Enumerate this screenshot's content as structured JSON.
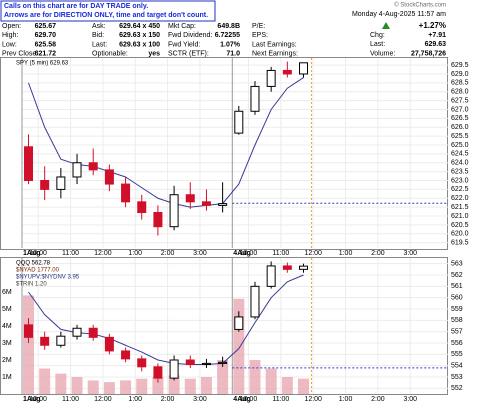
{
  "header": {
    "note": [
      "Calls on this chart are for DAY TRADE only.",
      "Arrows are for DIRECTION ONLY, time and target don't count."
    ],
    "rows": [
      [
        {
          "label": "Open:",
          "value": "625.67"
        },
        {
          "label": "Ask:",
          "value": "629.64 x 450"
        },
        {
          "label": "Mkt Cap:",
          "value": "649.8B"
        },
        {
          "label": "P/E:"
        }
      ],
      [
        {
          "label": "High:",
          "value": "629.70"
        },
        {
          "label": "Bid:",
          "value": "629.63 x 150"
        },
        {
          "label": "Fwd Dividend:",
          "value": "6.72255"
        },
        {
          "label": "EPS:"
        }
      ],
      [
        {
          "label": "Low:",
          "value": "625.58"
        },
        {
          "label": "Last:",
          "value": "629.63 x 100"
        },
        {
          "label": "Fwd Yield:",
          "value": "1.07%"
        },
        {
          "label": "Last Earnings:"
        }
      ],
      [
        {
          "label": "Prev Close:",
          "value": "621.72"
        },
        {
          "label": "Optionable:",
          "value": "yes"
        },
        {
          "label": "SCTR (ETF):",
          "value": "71.0"
        },
        {
          "label": "Next Earnings:"
        }
      ]
    ],
    "copyright": "© StockCharts.com",
    "date": "Monday  4-Aug-2025 11:57 am",
    "pct": "+1.27%",
    "right_rows": [
      {
        "label": "Chg:",
        "value": "+7.91"
      },
      {
        "label": "Last:",
        "value": "629.63"
      },
      {
        "label": "Volume:",
        "value": "27,758,726"
      }
    ]
  },
  "chart_data": [
    {
      "type": "candlestick",
      "legend": [
        {
          "text": "SPY (5 min) 629.63",
          "color": "#000000"
        }
      ],
      "x": [
        0,
        30,
        60,
        90,
        120,
        150,
        180,
        210,
        240,
        270,
        300,
        330,
        360,
        390,
        420,
        450,
        480,
        510
      ],
      "open": [
        624.9,
        623.0,
        622.5,
        623.2,
        624.0,
        623.6,
        622.8,
        621.8,
        621.2,
        620.4,
        622.2,
        621.8,
        621.6,
        625.67,
        626.9,
        628.3,
        629.2,
        629.0
      ],
      "high": [
        625.6,
        623.8,
        623.7,
        624.5,
        624.8,
        623.9,
        623.2,
        622.2,
        621.6,
        622.7,
        622.9,
        622.5,
        622.9,
        627.2,
        628.6,
        629.4,
        629.7,
        629.6
      ],
      "low": [
        622.8,
        621.9,
        622.0,
        622.8,
        623.3,
        622.4,
        621.5,
        620.8,
        619.9,
        620.2,
        621.4,
        621.3,
        621.2,
        625.58,
        626.7,
        628.0,
        628.8,
        628.8
      ],
      "close": [
        623.0,
        622.5,
        623.2,
        624.0,
        623.6,
        622.8,
        621.8,
        621.2,
        620.4,
        622.2,
        621.8,
        621.6,
        621.7,
        626.9,
        628.3,
        629.2,
        629.0,
        629.63
      ],
      "up_color": "#000000",
      "down_color": "#d0102a",
      "ma": {
        "color": "#3a3a96",
        "values": [
          628.5,
          626.0,
          624.2,
          623.9,
          623.8,
          623.5,
          623.2,
          622.6,
          622.0,
          621.7,
          621.5,
          621.6,
          621.7,
          622.8,
          625.0,
          627.0,
          628.2,
          628.8
        ]
      },
      "ref_line": {
        "value": 621.72,
        "color": "#2a3ad0"
      },
      "now_line": {
        "x": 537,
        "color": "#f0a020"
      },
      "xlim": [
        0,
        790
      ],
      "ylim": [
        619.2,
        629.9
      ],
      "yticks": [
        619.5,
        {
          "value": 620,
          "label": "620.0"
        },
        620.5,
        {
          "value": 621,
          "label": "621.0"
        },
        621.5,
        {
          "value": 622,
          "label": "622.0"
        },
        622.5,
        {
          "value": 623,
          "label": "623.0"
        },
        623.5,
        {
          "value": 624,
          "label": "624.0"
        },
        624.5,
        {
          "value": 625,
          "label": "625.0"
        },
        625.5,
        {
          "value": 626,
          "label": "626.0"
        },
        626.5,
        {
          "value": 627,
          "label": "627.0"
        },
        627.5,
        {
          "value": 628,
          "label": "628.0"
        },
        628.5,
        {
          "value": 629,
          "label": "629.0"
        },
        629.5
      ],
      "xticks": [
        {
          "value": 30,
          "label": "10:00"
        },
        {
          "value": 90,
          "label": "11:00"
        },
        {
          "value": 150,
          "label": "12:00"
        },
        {
          "value": 210,
          "label": "1:00"
        },
        {
          "value": 270,
          "label": "2:00"
        },
        {
          "value": 330,
          "label": "3:00"
        },
        {
          "value": 420,
          "label": "10:00"
        },
        {
          "value": 480,
          "label": "11:00"
        },
        {
          "value": 540,
          "label": "12:00"
        },
        {
          "value": 600,
          "label": "1:00"
        },
        {
          "value": 660,
          "label": "2:00"
        },
        {
          "value": 720,
          "label": "3:00"
        }
      ],
      "day_labels": [
        {
          "value": 0,
          "label": "1Aug"
        },
        {
          "value": 390,
          "label": "4Aug"
        }
      ],
      "grid": true
    },
    {
      "type": "candlestick",
      "legend": [
        {
          "text": "QQQ 562.78",
          "color": "#000000"
        },
        {
          "text": "$NYAD 1777.00",
          "color": "#7a2a00"
        },
        {
          "text": "$NYUPV:$NYDNV 3.95",
          "color": "#203080"
        },
        {
          "text": "$TRIN 1.20",
          "color": "#404040"
        }
      ],
      "x": [
        0,
        30,
        60,
        90,
        120,
        150,
        180,
        210,
        240,
        270,
        300,
        330,
        360,
        390,
        420,
        450,
        480,
        510
      ],
      "open": [
        557.6,
        556.5,
        555.8,
        556.6,
        557.3,
        556.5,
        555.3,
        554.6,
        553.9,
        552.9,
        554.5,
        554.1,
        554.2,
        557.2,
        558.3,
        561.0,
        562.8,
        562.5
      ],
      "high": [
        558.2,
        557.0,
        557.0,
        557.6,
        557.6,
        556.8,
        555.6,
        554.9,
        554.2,
        554.9,
        554.9,
        554.6,
        554.8,
        558.8,
        561.4,
        563.2,
        563.1,
        563.0
      ],
      "low": [
        556.0,
        555.4,
        555.6,
        556.3,
        556.2,
        555.0,
        554.3,
        553.5,
        552.5,
        552.7,
        553.8,
        553.8,
        553.9,
        557.0,
        558.1,
        560.8,
        562.2,
        562.2
      ],
      "close": [
        556.5,
        555.8,
        556.6,
        557.3,
        556.5,
        555.3,
        554.6,
        553.9,
        552.9,
        554.5,
        554.1,
        554.2,
        554.3,
        558.3,
        561.0,
        562.8,
        562.5,
        562.78
      ],
      "up_color": "#000000",
      "down_color": "#d0102a",
      "ma": {
        "color": "#3a3a96",
        "values": [
          560.5,
          558.5,
          557.2,
          556.9,
          556.8,
          556.4,
          555.8,
          555.2,
          554.5,
          554.2,
          554.1,
          554.1,
          554.2,
          555.5,
          557.8,
          560.0,
          561.4,
          562.0
        ]
      },
      "volume": {
        "axis": "y2",
        "color": "#e8a9b3",
        "values": [
          5800000,
          1500000,
          1200000,
          1000000,
          800000,
          700000,
          800000,
          900000,
          1000000,
          1100000,
          900000,
          1000000,
          2000000,
          5600000,
          2000000,
          1500000,
          1000000,
          900000
        ]
      },
      "ref_line": {
        "value": 553.8,
        "color": "#2a3ad0"
      },
      "now_line": {
        "x": 537,
        "color": "#f0a020"
      },
      "xlim": [
        0,
        790
      ],
      "ylim": [
        551.5,
        563.5
      ],
      "yticks": [
        552,
        553,
        554,
        555,
        556,
        557,
        558,
        559,
        560,
        561,
        562,
        563
      ],
      "y2lim": [
        0,
        8000000
      ],
      "y2ticks": [
        {
          "value": 1000000,
          "label": "1M"
        },
        {
          "value": 2000000,
          "label": "2M"
        },
        {
          "value": 3000000,
          "label": "3M"
        },
        {
          "value": 4000000,
          "label": "4M"
        },
        {
          "value": 5000000,
          "label": "5M"
        },
        {
          "value": 6000000,
          "label": "6M"
        }
      ],
      "xticks": [
        {
          "value": 30,
          "label": "10:00"
        },
        {
          "value": 90,
          "label": "11:00"
        },
        {
          "value": 150,
          "label": "12:00"
        },
        {
          "value": 210,
          "label": "1:00"
        },
        {
          "value": 270,
          "label": "2:00"
        },
        {
          "value": 330,
          "label": "3:00"
        },
        {
          "value": 420,
          "label": "10:00"
        },
        {
          "value": 480,
          "label": "11:00"
        },
        {
          "value": 540,
          "label": "12:00"
        },
        {
          "value": 600,
          "label": "1:00"
        },
        {
          "value": 660,
          "label": "2:00"
        },
        {
          "value": 720,
          "label": "3:00"
        }
      ],
      "day_labels": [
        {
          "value": 0,
          "label": "1Aug"
        },
        {
          "value": 390,
          "label": "4Aug"
        }
      ],
      "grid": true
    }
  ]
}
